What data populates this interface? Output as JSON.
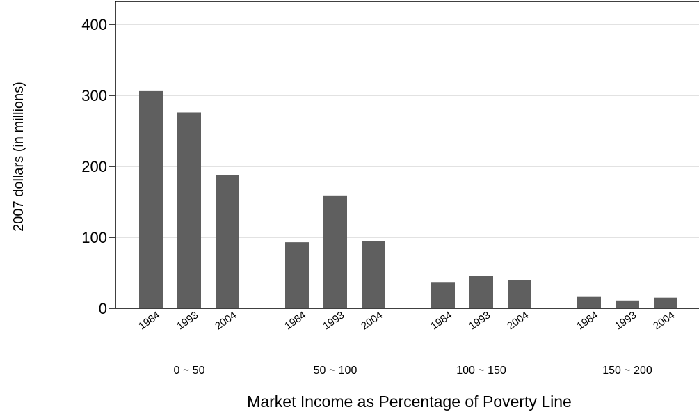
{
  "chart_data": {
    "type": "bar",
    "title": "",
    "xlabel": "Market Income as Percentage of Poverty Line",
    "ylabel": "2007 dollars (in millions)",
    "ylim": [
      0,
      420
    ],
    "yticks": [
      0,
      100,
      200,
      300,
      400
    ],
    "grid": true,
    "bar_color": "#5f5f5f",
    "grid_color": "#d9d9d9",
    "groups": [
      {
        "label": "0 ~ 50",
        "categories": [
          "1984",
          "1993",
          "2004"
        ],
        "values": [
          306,
          276,
          188
        ]
      },
      {
        "label": "50 ~ 100",
        "categories": [
          "1984",
          "1993",
          "2004"
        ],
        "values": [
          93,
          159,
          95
        ]
      },
      {
        "label": "100 ~ 150",
        "categories": [
          "1984",
          "1993",
          "2004"
        ],
        "values": [
          37,
          46,
          40
        ]
      },
      {
        "label": "150 ~ 200",
        "categories": [
          "1984",
          "1993",
          "2004"
        ],
        "values": [
          16,
          11,
          15
        ]
      }
    ]
  }
}
